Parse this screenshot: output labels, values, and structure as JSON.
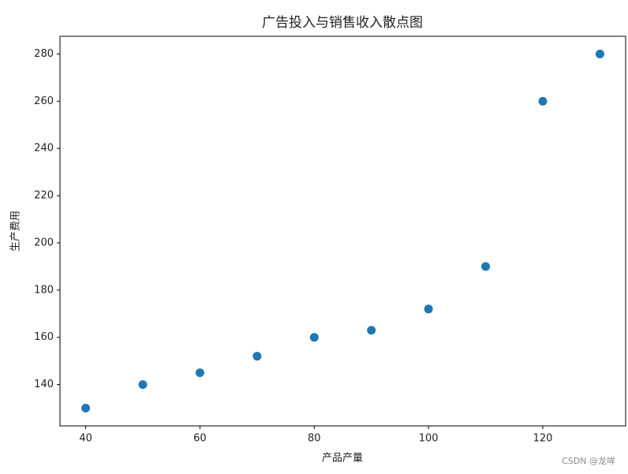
{
  "chart_data": {
    "type": "scatter",
    "title": "广告投入与销售收入散点图",
    "x_label": "产品产量",
    "y_label": "生产费用",
    "x": [
      40,
      50,
      60,
      70,
      80,
      90,
      100,
      110,
      120,
      130
    ],
    "series": [
      {
        "color": "#1f77b4",
        "values": [
          130,
          140,
          145,
          152,
          160,
          163,
          172,
          190,
          260,
          280
        ]
      }
    ],
    "xlim": [
      35.5,
      134.5
    ],
    "ylim": [
      122.5,
      287.5
    ],
    "xticks": [
      40,
      60,
      80,
      100,
      120
    ],
    "yticks": [
      140,
      160,
      180,
      200,
      220,
      240,
      260,
      280
    ],
    "grid": false
  },
  "watermark": "CSDN @龙哞"
}
